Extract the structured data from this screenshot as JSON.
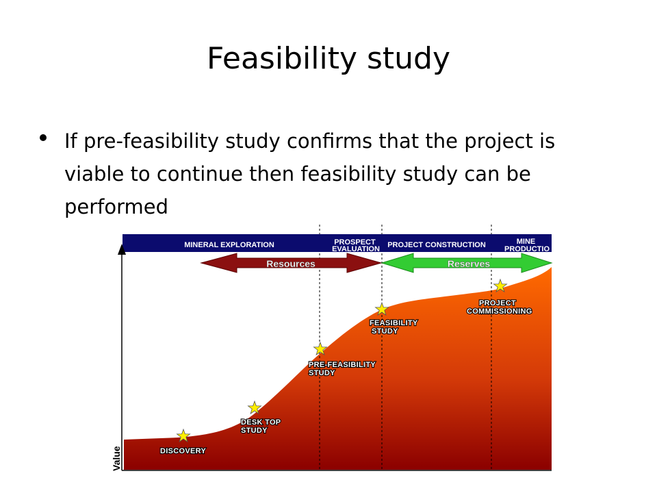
{
  "slide": {
    "title": "Feasibility study",
    "bullet": "If pre-feasibility study confirms that the project is viable to continue then feasibility study can be performed"
  },
  "diagram": {
    "phases": [
      {
        "label_lines": [
          "MINERAL EXPLORATION"
        ]
      },
      {
        "label_lines": [
          "PROSPECT",
          "EVALUATION"
        ]
      },
      {
        "label_lines": [
          "PROJECT CONSTRUCTION"
        ]
      },
      {
        "label_lines": [
          "MINE",
          "PRODUCTIO"
        ]
      }
    ],
    "arrows": [
      {
        "label": "Resources",
        "color": "#8b1010"
      },
      {
        "label": "Reserves",
        "color": "#33cc33"
      }
    ],
    "milestones": [
      {
        "label_lines": [
          "DISCOVERY"
        ]
      },
      {
        "label_lines": [
          "DESK TOP",
          "STUDY"
        ]
      },
      {
        "label_lines": [
          "PRE-FEASIBILITY",
          "STUDY"
        ]
      },
      {
        "label_lines": [
          "FEASIBILITY",
          "STUDY"
        ]
      },
      {
        "label_lines": [
          "PROJECT",
          "COMMISSIONING"
        ]
      }
    ],
    "y_axis_label": "Value",
    "colors": {
      "bar": "#0b0b6e",
      "curve_top": "#ff6a00",
      "curve_bottom": "#8b0000",
      "star": "#ffee00"
    }
  }
}
